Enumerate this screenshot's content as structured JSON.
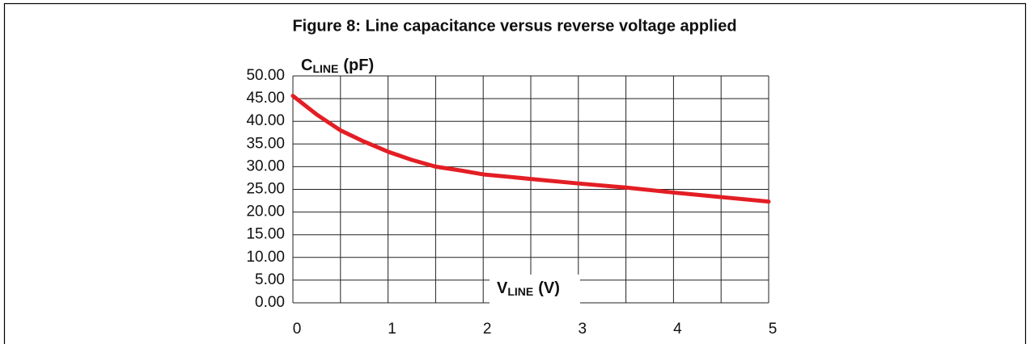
{
  "chart_data": {
    "type": "line",
    "title": "Figure 8: Line capacitance versus reverse voltage applied",
    "ylabel": {
      "main": "C",
      "sub": "LINE",
      "unit": "(pF)"
    },
    "xlabel": {
      "main": "V",
      "sub": "LINE",
      "unit": "(V)"
    },
    "x": [
      0,
      0.25,
      0.5,
      0.75,
      1,
      1.25,
      1.5,
      1.75,
      2,
      2.5,
      3,
      3.5,
      4,
      4.5,
      5
    ],
    "series": [
      {
        "name": "CLINE",
        "color": "#e31e24",
        "values": [
          45.6,
          41.5,
          38,
          35.5,
          33.3,
          31.5,
          30,
          29.2,
          28.3,
          27.3,
          26.3,
          25.4,
          24.3,
          23.3,
          22.3
        ]
      }
    ],
    "xlim": [
      0,
      5
    ],
    "xticks": [
      0,
      1,
      2,
      3,
      4,
      5
    ],
    "xminorticks": [
      0.5,
      1.5,
      2.5,
      3.5,
      4.5
    ],
    "ylim": [
      0,
      50
    ],
    "yticks": [
      {
        "value": 0,
        "label": "0.00"
      },
      {
        "value": 5,
        "label": "5.00"
      },
      {
        "value": 10,
        "label": "10.00"
      },
      {
        "value": 15,
        "label": "15.00"
      },
      {
        "value": 20,
        "label": "20.00"
      },
      {
        "value": 25,
        "label": "25.00"
      },
      {
        "value": 30,
        "label": "30.00"
      },
      {
        "value": 35,
        "label": "35.00"
      },
      {
        "value": 40,
        "label": "40.00"
      },
      {
        "value": 45,
        "label": "45.00"
      },
      {
        "value": 50,
        "label": "50.00"
      }
    ],
    "grid": true
  }
}
